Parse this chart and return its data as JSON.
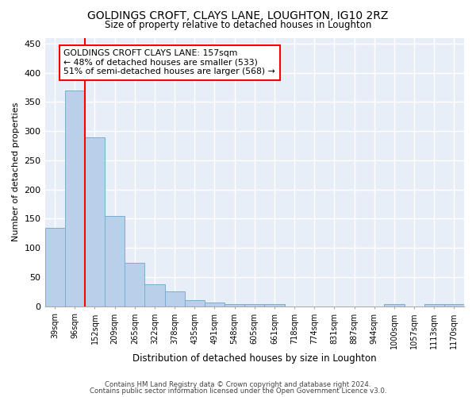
{
  "title": "GOLDINGS CROFT, CLAYS LANE, LOUGHTON, IG10 2RZ",
  "subtitle": "Size of property relative to detached houses in Loughton",
  "xlabel": "Distribution of detached houses by size in Loughton",
  "ylabel": "Number of detached properties",
  "categories": [
    "39sqm",
    "96sqm",
    "152sqm",
    "209sqm",
    "265sqm",
    "322sqm",
    "378sqm",
    "435sqm",
    "491sqm",
    "548sqm",
    "605sqm",
    "661sqm",
    "718sqm",
    "774sqm",
    "831sqm",
    "887sqm",
    "944sqm",
    "1000sqm",
    "1057sqm",
    "1113sqm",
    "1170sqm"
  ],
  "bar_values": [
    135,
    370,
    290,
    155,
    75,
    38,
    26,
    10,
    6,
    4,
    4,
    4,
    0,
    0,
    0,
    0,
    0,
    4,
    0,
    4,
    4
  ],
  "bar_color": "#b8d0ea",
  "bar_edge_color": "#7aadd4",
  "vline_pos": 1.5,
  "vline_color": "red",
  "annotation_text": "GOLDINGS CROFT CLAYS LANE: 157sqm\n← 48% of detached houses are smaller (533)\n51% of semi-detached houses are larger (568) →",
  "annotation_box_facecolor": "white",
  "annotation_box_edgecolor": "red",
  "ylim": [
    0,
    460
  ],
  "yticks": [
    0,
    50,
    100,
    150,
    200,
    250,
    300,
    350,
    400,
    450
  ],
  "footer1": "Contains HM Land Registry data © Crown copyright and database right 2024.",
  "footer2": "Contains public sector information licensed under the Open Government Licence v3.0.",
  "plot_bg_color": "#e8eef7",
  "fig_bg_color": "#ffffff"
}
